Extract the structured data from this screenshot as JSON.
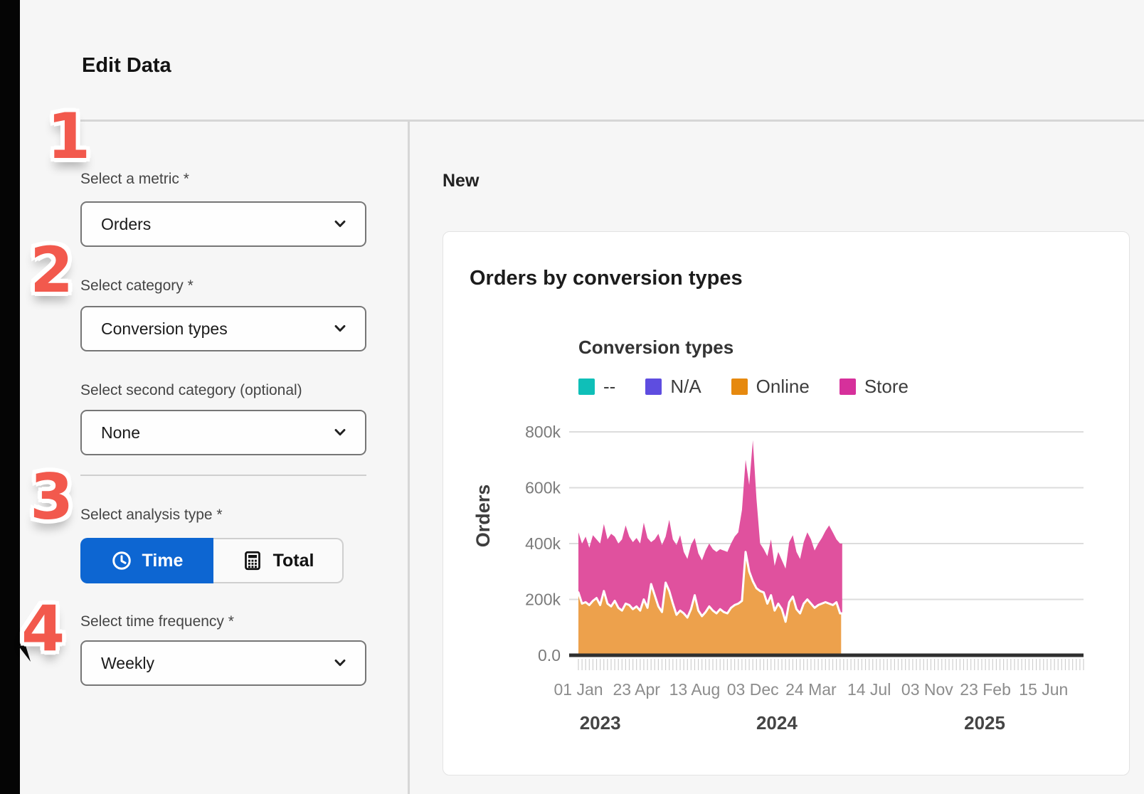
{
  "app": {
    "title": "Edit Data"
  },
  "annotations": {
    "steps": [
      "1",
      "2",
      "3",
      "4"
    ]
  },
  "form": {
    "metric": {
      "label": "Select a metric *",
      "value": "Orders"
    },
    "category": {
      "label": "Select category *",
      "value": "Conversion types"
    },
    "second_category": {
      "label": "Select second category (optional)",
      "value": "None"
    },
    "analysis": {
      "label": "Select analysis type *",
      "options": [
        {
          "label": "Time",
          "icon": "clock-icon",
          "selected": true
        },
        {
          "label": "Total",
          "icon": "calculator-icon",
          "selected": false
        }
      ]
    },
    "frequency": {
      "label": "Select time frequency *",
      "value": "Weekly"
    }
  },
  "preview": {
    "heading": "New"
  },
  "colors": {
    "accent_blue": "#0D66D2",
    "step_badge": "#F2594D",
    "divider": "#d6d6d6",
    "axis_black": "#2f2f2f"
  },
  "chart_data": {
    "type": "area",
    "stacked": true,
    "title": "Orders by conversion types",
    "legend_title": "Conversion types",
    "legend_position": "top",
    "ylabel": "Orders",
    "values_unit": "thousands of orders (k)",
    "grid": true,
    "ylim_k": [
      0,
      800
    ],
    "yticks": [
      {
        "label": "0.0",
        "value": 0
      },
      {
        "label": "200k",
        "value": 200
      },
      {
        "label": "400k",
        "value": 400
      },
      {
        "label": "600k",
        "value": 600
      },
      {
        "label": "800k",
        "value": 800
      }
    ],
    "x_axis": {
      "unit": "week",
      "start": "01 Jan 2023",
      "total_weeks": 139,
      "ticks": [
        {
          "label": "01 Jan",
          "week": 0
        },
        {
          "label": "23 Apr",
          "week": 16
        },
        {
          "label": "13 Aug",
          "week": 32
        },
        {
          "label": "03 Dec",
          "week": 48
        },
        {
          "label": "24 Mar",
          "week": 64
        },
        {
          "label": "14 Jul",
          "week": 80
        },
        {
          "label": "03 Nov",
          "week": 96
        },
        {
          "label": "23 Feb",
          "week": 112
        },
        {
          "label": "15 Jun",
          "week": 128
        }
      ],
      "year_labels": [
        {
          "label": "2023",
          "week": 6
        },
        {
          "label": "2024",
          "week": 54.6
        },
        {
          "label": "2025",
          "week": 111.8
        }
      ]
    },
    "series": [
      {
        "name": "--",
        "color": "#0FBFB8",
        "fill": "#0FBFB8",
        "values_k": []
      },
      {
        "name": "N/A",
        "color": "#5E4DE0",
        "fill": "#5E4DE0",
        "values_k": []
      },
      {
        "name": "Online",
        "color": "#E6890F",
        "fill": "#EDA14C",
        "values_k": [
          225,
          185,
          190,
          180,
          195,
          205,
          180,
          230,
          185,
          175,
          195,
          170,
          160,
          185,
          180,
          165,
          175,
          160,
          200,
          170,
          255,
          215,
          175,
          155,
          260,
          230,
          185,
          145,
          160,
          150,
          135,
          165,
          215,
          160,
          140,
          155,
          175,
          160,
          150,
          165,
          155,
          150,
          170,
          180,
          185,
          195,
          370,
          300,
          265,
          240,
          230,
          225,
          185,
          215,
          160,
          185,
          165,
          120,
          190,
          210,
          165,
          150,
          185,
          200,
          185,
          170,
          180,
          185,
          190,
          185,
          180,
          190,
          150
        ]
      },
      {
        "name": "Store",
        "color": "#D6309B",
        "fill": "#E0519E",
        "values_k": [
          215,
          215,
          235,
          205,
          235,
          210,
          220,
          240,
          230,
          260,
          230,
          230,
          255,
          280,
          245,
          240,
          245,
          240,
          275,
          250,
          150,
          200,
          260,
          240,
          165,
          255,
          230,
          250,
          270,
          220,
          210,
          230,
          205,
          205,
          200,
          220,
          225,
          220,
          220,
          215,
          220,
          220,
          230,
          245,
          255,
          325,
          330,
          310,
          505,
          320,
          170,
          155,
          170,
          200,
          160,
          185,
          175,
          190,
          215,
          220,
          205,
          195,
          220,
          240,
          230,
          205,
          220,
          235,
          255,
          280,
          260,
          225,
          250
        ]
      }
    ]
  }
}
